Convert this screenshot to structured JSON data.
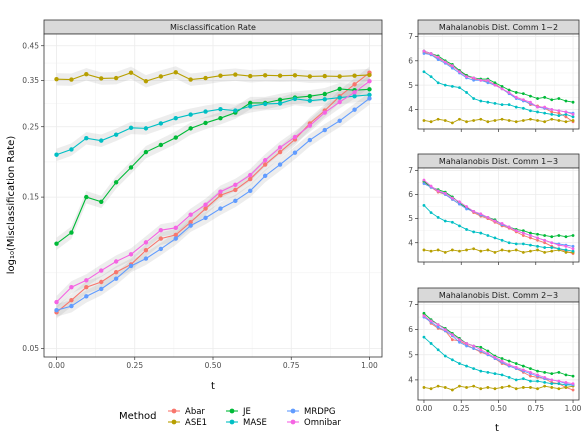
{
  "figure": {
    "ylabel": "log₁₀(Misclassification Rate)",
    "xlabel_main": "t",
    "xlabel_side": "t"
  },
  "legend": {
    "title": "Method",
    "entries": [
      {
        "name": "Abar",
        "color": "#F8766D"
      },
      {
        "name": "ASE1",
        "color": "#B79F00"
      },
      {
        "name": "JE",
        "color": "#00BA38"
      },
      {
        "name": "MASE",
        "color": "#00BFC4"
      },
      {
        "name": "MRDPG",
        "color": "#619CFF"
      },
      {
        "name": "Omnibar",
        "color": "#F564E3"
      }
    ]
  },
  "chart_data": [
    {
      "id": "misclassification",
      "type": "line",
      "title": "Misclassification Rate",
      "xlabel": "t",
      "ylabel": "log₁₀(Misclassification Rate)",
      "y_scale": "log10",
      "xlim": [
        -0.04,
        1.04
      ],
      "ylim": [
        0.047,
        0.49
      ],
      "x_ticks": [
        0,
        0.25,
        0.5,
        0.75,
        1
      ],
      "x_tick_labels": [
        "0.00",
        "0.25",
        "0.50",
        "0.75",
        "1.00"
      ],
      "y_ticks": [
        0.05,
        0.15,
        0.25,
        0.35,
        0.45
      ],
      "y_tick_labels": [
        "0.05",
        "0.15",
        "0.25",
        "0.35",
        "0.45"
      ],
      "grid": true,
      "ribbons": true,
      "x": [
        0,
        0.0476,
        0.0952,
        0.1429,
        0.1905,
        0.2381,
        0.2857,
        0.3333,
        0.381,
        0.4286,
        0.4762,
        0.5238,
        0.5714,
        0.619,
        0.6667,
        0.7143,
        0.7619,
        0.8095,
        0.8571,
        0.9048,
        0.9524,
        1
      ],
      "series": [
        {
          "name": "Abar",
          "color": "#F8766D",
          "values": [
            0.065,
            0.071,
            0.078,
            0.081,
            0.087,
            0.092,
            0.102,
            0.111,
            0.114,
            0.125,
            0.138,
            0.152,
            0.158,
            0.171,
            0.19,
            0.208,
            0.228,
            0.256,
            0.281,
            0.312,
            0.34,
            0.37
          ]
        },
        {
          "name": "ASE1",
          "color": "#B79F00",
          "values": [
            0.353,
            0.352,
            0.366,
            0.355,
            0.356,
            0.37,
            0.348,
            0.36,
            0.371,
            0.352,
            0.356,
            0.362,
            0.365,
            0.361,
            0.363,
            0.362,
            0.363,
            0.36,
            0.361,
            0.36,
            0.362,
            0.364
          ]
        },
        {
          "name": "JE",
          "color": "#00BA38",
          "values": [
            0.107,
            0.116,
            0.15,
            0.145,
            0.167,
            0.186,
            0.208,
            0.219,
            0.231,
            0.247,
            0.257,
            0.266,
            0.277,
            0.297,
            0.297,
            0.304,
            0.309,
            0.312,
            0.317,
            0.329,
            0.326,
            0.328
          ]
        },
        {
          "name": "MASE",
          "color": "#00BFC4",
          "values": [
            0.204,
            0.212,
            0.23,
            0.226,
            0.236,
            0.248,
            0.247,
            0.256,
            0.266,
            0.273,
            0.279,
            0.284,
            0.281,
            0.29,
            0.295,
            0.296,
            0.306,
            0.302,
            0.305,
            0.309,
            0.312,
            0.315
          ]
        },
        {
          "name": "MRDPG",
          "color": "#619CFF",
          "values": [
            0.066,
            0.068,
            0.073,
            0.077,
            0.083,
            0.091,
            0.096,
            0.103,
            0.111,
            0.122,
            0.129,
            0.138,
            0.146,
            0.157,
            0.175,
            0.19,
            0.207,
            0.227,
            0.244,
            0.261,
            0.283,
            0.307
          ]
        },
        {
          "name": "Omnibar",
          "color": "#F564E3",
          "values": [
            0.07,
            0.078,
            0.082,
            0.088,
            0.094,
            0.099,
            0.108,
            0.118,
            0.12,
            0.132,
            0.142,
            0.156,
            0.164,
            0.176,
            0.196,
            0.215,
            0.232,
            0.252,
            0.277,
            0.299,
            0.321,
            0.348
          ]
        }
      ]
    },
    {
      "id": "mahal12",
      "type": "line",
      "title": "Mahalanobis Dist. Comm 1~2",
      "ylim": [
        3.2,
        7.1
      ],
      "xlim": [
        -0.04,
        1.04
      ],
      "y_ticks": [
        4,
        5,
        6,
        7
      ],
      "y_tick_labels": [
        "4",
        "5",
        "6",
        "7"
      ],
      "x_ticks": [
        0,
        0.25,
        0.5,
        0.75,
        1
      ],
      "x_tick_labels": [
        "0.00",
        "0.25",
        "0.50",
        "0.75",
        "1.00"
      ],
      "grid": true,
      "x": [
        0,
        0.0476,
        0.0952,
        0.1429,
        0.1905,
        0.2381,
        0.2857,
        0.3333,
        0.381,
        0.4286,
        0.4762,
        0.5238,
        0.5714,
        0.619,
        0.6667,
        0.7143,
        0.7619,
        0.8095,
        0.8571,
        0.9048,
        0.9524,
        1
      ],
      "series": [
        {
          "name": "Abar",
          "color": "#F8766D",
          "values": [
            6.35,
            6.25,
            6.1,
            5.95,
            5.75,
            5.6,
            5.4,
            5.25,
            5.2,
            5.15,
            5.05,
            4.85,
            4.65,
            4.5,
            4.4,
            4.2,
            4.15,
            4.05,
            3.9,
            3.85,
            3.7,
            3.5
          ]
        },
        {
          "name": "ASE1",
          "color": "#B79F00",
          "values": [
            3.55,
            3.5,
            3.6,
            3.55,
            3.45,
            3.6,
            3.5,
            3.55,
            3.6,
            3.5,
            3.55,
            3.6,
            3.55,
            3.5,
            3.55,
            3.6,
            3.55,
            3.5,
            3.6,
            3.55,
            3.5,
            3.55
          ]
        },
        {
          "name": "JE",
          "color": "#00BA38",
          "values": [
            6.4,
            6.3,
            6.2,
            6.0,
            5.85,
            5.6,
            5.4,
            5.3,
            5.25,
            5.25,
            5.1,
            4.95,
            4.8,
            4.7,
            4.65,
            4.55,
            4.45,
            4.5,
            4.4,
            4.45,
            4.35,
            4.3
          ]
        },
        {
          "name": "MASE",
          "color": "#00BFC4",
          "values": [
            5.55,
            5.35,
            5.1,
            5.0,
            4.95,
            4.9,
            4.7,
            4.45,
            4.35,
            4.3,
            4.25,
            4.2,
            4.2,
            4.1,
            4.05,
            3.95,
            3.9,
            3.85,
            3.8,
            3.75,
            3.8,
            3.7
          ]
        },
        {
          "name": "MRDPG",
          "color": "#619CFF",
          "values": [
            6.3,
            6.25,
            6.05,
            5.9,
            5.7,
            5.5,
            5.3,
            5.2,
            5.2,
            5.1,
            5.0,
            4.85,
            4.65,
            4.45,
            4.35,
            4.25,
            4.1,
            4.05,
            4.0,
            3.95,
            3.9,
            3.85
          ]
        },
        {
          "name": "Omnibar",
          "color": "#F564E3",
          "values": [
            6.4,
            6.3,
            6.15,
            5.95,
            5.8,
            5.55,
            5.35,
            5.3,
            5.2,
            5.2,
            5.0,
            4.85,
            4.7,
            4.5,
            4.4,
            4.3,
            4.1,
            4.1,
            4.0,
            3.95,
            3.9,
            3.8
          ]
        }
      ]
    },
    {
      "id": "mahal13",
      "type": "line",
      "title": "Mahalanobis Dist. Comm 1~3",
      "ylim": [
        3.2,
        7.1
      ],
      "xlim": [
        -0.04,
        1.04
      ],
      "y_ticks": [
        4,
        5,
        6,
        7
      ],
      "y_tick_labels": [
        "4",
        "5",
        "6",
        "7"
      ],
      "x_ticks": [
        0,
        0.25,
        0.5,
        0.75,
        1
      ],
      "x_tick_labels": [
        "0.00",
        "0.25",
        "0.50",
        "0.75",
        "1.00"
      ],
      "grid": true,
      "x": [
        0,
        0.0476,
        0.0952,
        0.1429,
        0.1905,
        0.2381,
        0.2857,
        0.3333,
        0.381,
        0.4286,
        0.4762,
        0.5238,
        0.5714,
        0.619,
        0.6667,
        0.7143,
        0.7619,
        0.8095,
        0.8571,
        0.9048,
        0.9524,
        1
      ],
      "series": [
        {
          "name": "Abar",
          "color": "#F8766D",
          "values": [
            6.5,
            6.3,
            6.1,
            6.0,
            5.8,
            5.6,
            5.45,
            5.25,
            5.1,
            5.0,
            4.85,
            4.7,
            4.6,
            4.45,
            4.3,
            4.2,
            4.1,
            4.0,
            3.85,
            3.75,
            3.65,
            3.55
          ]
        },
        {
          "name": "ASE1",
          "color": "#B79F00",
          "values": [
            3.7,
            3.65,
            3.7,
            3.6,
            3.7,
            3.65,
            3.7,
            3.75,
            3.65,
            3.7,
            3.6,
            3.7,
            3.65,
            3.7,
            3.6,
            3.65,
            3.7,
            3.6,
            3.65,
            3.7,
            3.6,
            3.6
          ]
        },
        {
          "name": "JE",
          "color": "#00BA38",
          "values": [
            6.55,
            6.3,
            6.2,
            6.1,
            5.9,
            5.65,
            5.45,
            5.3,
            5.15,
            5.05,
            4.95,
            4.75,
            4.65,
            4.55,
            4.5,
            4.4,
            4.35,
            4.3,
            4.25,
            4.3,
            4.25,
            4.3
          ]
        },
        {
          "name": "MASE",
          "color": "#00BFC4",
          "values": [
            5.55,
            5.25,
            5.05,
            4.9,
            4.85,
            4.7,
            4.55,
            4.45,
            4.4,
            4.3,
            4.2,
            4.1,
            4.0,
            3.95,
            3.95,
            3.9,
            3.85,
            3.8,
            3.8,
            3.75,
            3.7,
            3.65
          ]
        },
        {
          "name": "MRDPG",
          "color": "#619CFF",
          "values": [
            6.45,
            6.3,
            6.15,
            6.0,
            5.8,
            5.6,
            5.4,
            5.3,
            5.15,
            5.05,
            4.9,
            4.75,
            4.65,
            4.5,
            4.4,
            4.3,
            4.2,
            4.1,
            4.0,
            3.95,
            3.9,
            3.85
          ]
        },
        {
          "name": "Omnibar",
          "color": "#F564E3",
          "values": [
            6.6,
            6.35,
            6.15,
            6.05,
            5.85,
            5.7,
            5.5,
            5.3,
            5.2,
            5.05,
            4.9,
            4.8,
            4.65,
            4.5,
            4.4,
            4.3,
            4.2,
            4.1,
            4.0,
            3.9,
            3.85,
            3.75
          ]
        }
      ]
    },
    {
      "id": "mahal23",
      "type": "line",
      "title": "Mahalanobis Dist. Comm 2~3",
      "xlabel": "t",
      "ylim": [
        3.2,
        7.1
      ],
      "xlim": [
        -0.04,
        1.04
      ],
      "y_ticks": [
        4,
        5,
        6,
        7
      ],
      "y_tick_labels": [
        "4",
        "5",
        "6",
        "7"
      ],
      "x_ticks": [
        0,
        0.25,
        0.5,
        0.75,
        1
      ],
      "x_tick_labels": [
        "0.00",
        "0.25",
        "0.50",
        "0.75",
        "1.00"
      ],
      "grid": true,
      "x": [
        0,
        0.0476,
        0.0952,
        0.1429,
        0.1905,
        0.2381,
        0.2857,
        0.3333,
        0.381,
        0.4286,
        0.4762,
        0.5238,
        0.5714,
        0.619,
        0.6667,
        0.7143,
        0.7619,
        0.8095,
        0.8571,
        0.9048,
        0.9524,
        1
      ],
      "series": [
        {
          "name": "Abar",
          "color": "#F8766D",
          "values": [
            6.6,
            6.25,
            6.05,
            5.95,
            5.6,
            5.55,
            5.4,
            5.25,
            5.1,
            5.0,
            4.85,
            4.65,
            4.55,
            4.45,
            4.3,
            4.15,
            4.1,
            4.05,
            3.9,
            3.85,
            3.7,
            3.6
          ]
        },
        {
          "name": "ASE1",
          "color": "#B79F00",
          "values": [
            3.7,
            3.65,
            3.75,
            3.7,
            3.6,
            3.75,
            3.7,
            3.75,
            3.65,
            3.7,
            3.65,
            3.7,
            3.75,
            3.65,
            3.7,
            3.7,
            3.65,
            3.75,
            3.7,
            3.65,
            3.7,
            3.75
          ]
        },
        {
          "name": "JE",
          "color": "#00BA38",
          "values": [
            6.65,
            6.4,
            6.2,
            6.05,
            5.85,
            5.65,
            5.45,
            5.35,
            5.3,
            5.15,
            4.95,
            4.85,
            4.75,
            4.65,
            4.55,
            4.45,
            4.35,
            4.3,
            4.25,
            4.3,
            4.2,
            4.15
          ]
        },
        {
          "name": "MASE",
          "color": "#00BFC4",
          "values": [
            5.7,
            5.45,
            5.2,
            4.95,
            4.8,
            4.65,
            4.55,
            4.45,
            4.35,
            4.3,
            4.25,
            4.2,
            4.1,
            4.0,
            4.05,
            3.95,
            3.95,
            3.9,
            3.85,
            3.85,
            3.8,
            3.8
          ]
        },
        {
          "name": "MRDPG",
          "color": "#619CFF",
          "values": [
            6.5,
            6.3,
            6.1,
            5.95,
            5.75,
            5.5,
            5.35,
            5.25,
            5.15,
            5.0,
            4.85,
            4.7,
            4.55,
            4.45,
            4.35,
            4.25,
            4.15,
            4.05,
            4.0,
            3.95,
            3.85,
            3.8
          ]
        },
        {
          "name": "Omnibar",
          "color": "#F564E3",
          "values": [
            6.55,
            6.35,
            6.2,
            6.0,
            5.8,
            5.6,
            5.45,
            5.35,
            5.2,
            5.05,
            4.9,
            4.75,
            4.6,
            4.5,
            4.4,
            4.3,
            4.2,
            4.1,
            4.0,
            3.95,
            3.9,
            3.85
          ]
        }
      ]
    }
  ]
}
